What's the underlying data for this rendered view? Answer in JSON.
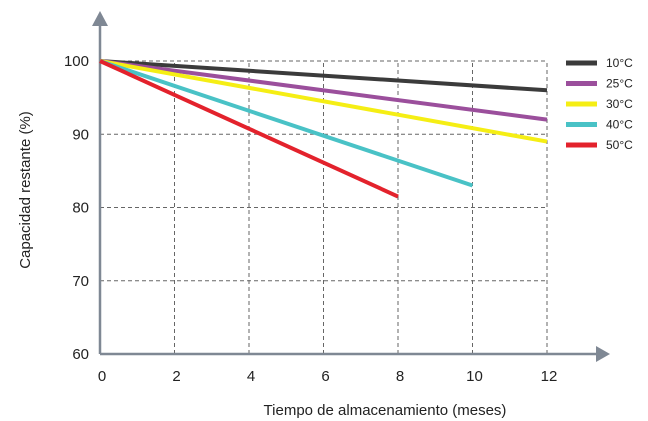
{
  "chart_data": {
    "type": "line",
    "xlabel": "Tiempo de almacenamiento (meses)",
    "ylabel": "Capacidad restante (%)",
    "xlim": [
      0,
      12
    ],
    "ylim": [
      60,
      100
    ],
    "x_ticks": [
      "0",
      "2",
      "4",
      "6",
      "8",
      "10",
      "12"
    ],
    "y_ticks": [
      "60",
      "70",
      "80",
      "90",
      "100"
    ],
    "grid": true,
    "legend_position": "right",
    "series": [
      {
        "name": "10°C",
        "color": "#3b3b3b",
        "x": [
          0,
          12
        ],
        "y": [
          100,
          96
        ]
      },
      {
        "name": "25°C",
        "color": "#9b4f9c",
        "x": [
          0,
          12
        ],
        "y": [
          100,
          92
        ]
      },
      {
        "name": "30°C",
        "color": "#f5ee14",
        "x": [
          0,
          12
        ],
        "y": [
          100,
          89
        ]
      },
      {
        "name": "40°C",
        "color": "#49c2c6",
        "x": [
          0,
          10
        ],
        "y": [
          100,
          83
        ]
      },
      {
        "name": "50°C",
        "color": "#e3222c",
        "x": [
          0,
          8
        ],
        "y": [
          100,
          81.5
        ]
      }
    ]
  }
}
